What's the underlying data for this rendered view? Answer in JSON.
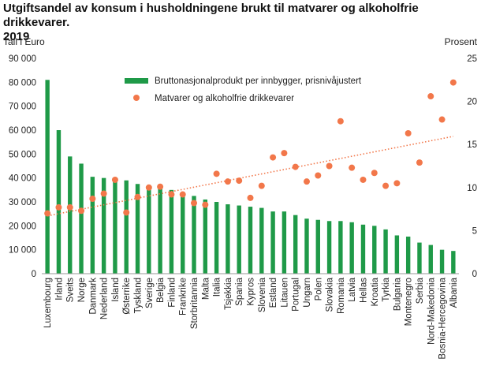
{
  "chart_data": {
    "type": "bar",
    "title_line1": "Utgiftsandel av konsum i husholdningene brukt til matvarer og alkoholfrie drikkevarer.",
    "title_line2": "2019",
    "ylabel_left": "Tall i Euro",
    "ylabel_right": "Prosent",
    "ylim_left": [
      0,
      90000
    ],
    "ylim_right": [
      0,
      25
    ],
    "yticks_left": [
      "0",
      "10 000",
      "20 000",
      "30 000",
      "40 000",
      "50 000",
      "60 000",
      "70 000",
      "80 000",
      "90 000"
    ],
    "yticks_right": [
      "0",
      "5",
      "10",
      "15",
      "20",
      "25"
    ],
    "categories": [
      "Luxembourg",
      "Irland",
      "Sveits",
      "Norge",
      "Danmark",
      "Nederland",
      "Island",
      "Østerrike",
      "Tyskland",
      "Sverige",
      "Belgia",
      "Finland",
      "Frankrike",
      "Storbritannia",
      "Malta",
      "Italia",
      "Tsjekkia",
      "Spania",
      "Kypros",
      "Slovenia",
      "Estland",
      "Litauen",
      "Portugal",
      "Ungarn",
      "Polen",
      "Slovakia",
      "Romania",
      "Latvia",
      "Hellas",
      "Kroatia",
      "Tyrkia",
      "Bulgaria",
      "Montenegro",
      "Serbia",
      "Nord-Makedonia",
      "Bosnia-Hercegovina",
      "Albania"
    ],
    "series": [
      {
        "name": "Bruttonasjonalprodukt per innbygger, prisnivåjustert",
        "kind": "bar",
        "axis": "left",
        "color": "#1f9a48",
        "values": [
          81000,
          60000,
          49000,
          46000,
          40500,
          40000,
          39500,
          39000,
          37500,
          37000,
          36000,
          35000,
          33500,
          32500,
          31000,
          30000,
          29000,
          28500,
          28000,
          27500,
          26000,
          26000,
          24500,
          23000,
          22500,
          22000,
          22000,
          21500,
          20500,
          20000,
          18500,
          16000,
          15500,
          13000,
          12000,
          10000,
          9500
        ]
      },
      {
        "name": "Matvarer og alkoholfrie drikkevarer",
        "kind": "scatter",
        "axis": "right",
        "color": "#f2774a",
        "values": [
          7.0,
          7.7,
          7.7,
          7.3,
          8.7,
          9.3,
          10.9,
          7.1,
          8.9,
          10.0,
          10.1,
          9.2,
          9.2,
          8.2,
          8.0,
          11.6,
          10.7,
          10.8,
          8.8,
          10.2,
          13.5,
          14.0,
          12.4,
          10.7,
          11.4,
          12.5,
          17.7,
          12.3,
          10.9,
          11.7,
          10.2,
          10.5,
          16.3,
          12.9,
          20.6,
          17.9,
          22.2
        ]
      }
    ],
    "trendline": {
      "kind": "linear",
      "style": "dotted",
      "color": "#f2774a",
      "axis": "right"
    },
    "grid": {
      "horizontal": false,
      "vertical": false
    },
    "legend_placement": "top-center"
  }
}
